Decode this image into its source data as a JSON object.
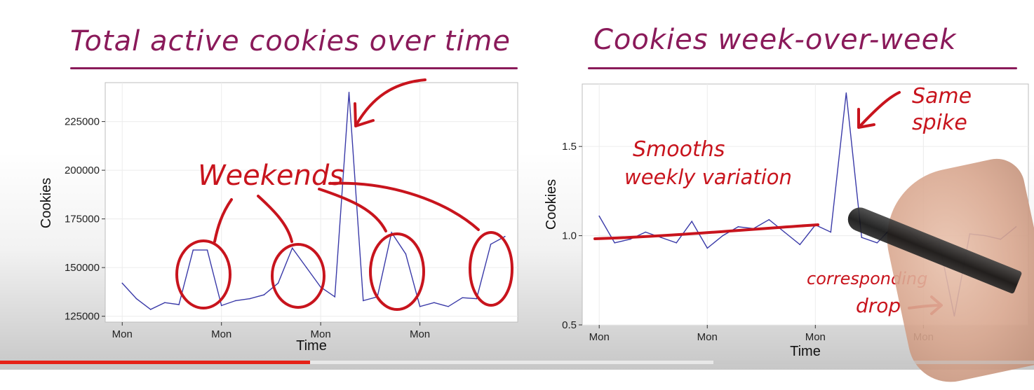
{
  "video": {
    "progress_played": 0.3,
    "progress_buffered": 0.69,
    "progress_color": "#e62117"
  },
  "colors": {
    "title_ink": "#8a1a5a",
    "annotation_ink": "#c8141d",
    "series_line": "#3a3aa8"
  },
  "chart_data": [
    {
      "type": "line",
      "title": "Total active cookies over time",
      "xlabel": "Time",
      "ylabel": "Cookies",
      "ylim": [
        122000,
        245000
      ],
      "yticks": [
        125000,
        150000,
        175000,
        200000,
        225000
      ],
      "ytick_labels": [
        "125000",
        "150000",
        "175000",
        "200000",
        "225000"
      ],
      "xticks": [
        0,
        7,
        14,
        21
      ],
      "xtick_labels": [
        "Mon",
        "Mon",
        "Mon",
        "Mon"
      ],
      "xlim": [
        -1.2,
        27.9
      ],
      "x": [
        0,
        1,
        2,
        3,
        4,
        5,
        6,
        7,
        8,
        9,
        10,
        11,
        12,
        13,
        14,
        15,
        16,
        17,
        18,
        19,
        20,
        21,
        22,
        23,
        24,
        25,
        26,
        27
      ],
      "series": [
        {
          "values": [
            142000,
            134000,
            128500,
            132000,
            131000,
            159000,
            159000,
            130500,
            133000,
            134000,
            136000,
            142000,
            160000,
            150000,
            140000,
            135000,
            240000,
            133000,
            135000,
            168000,
            157000,
            130000,
            132000,
            130000,
            134500,
            134000,
            162000,
            166000
          ]
        }
      ],
      "grid": true,
      "annotations": [
        {
          "text": "Weekends"
        }
      ]
    },
    {
      "type": "line",
      "title": "Cookies week-over-week",
      "xlabel": "Time",
      "ylabel": "Cookies",
      "ylim": [
        0.5,
        1.85
      ],
      "yticks": [
        0.5,
        1.0,
        1.5
      ],
      "ytick_labels": [
        "0.5",
        "1.0",
        "1.5"
      ],
      "xticks": [
        0,
        7,
        14,
        21
      ],
      "xtick_labels": [
        "Mon",
        "Mon",
        "Mon",
        "Mon"
      ],
      "xlim": [
        -1.1,
        27.8
      ],
      "x": [
        0,
        1,
        2,
        3,
        4,
        5,
        6,
        7,
        8,
        9,
        10,
        11,
        12,
        13,
        14,
        15,
        16,
        17,
        18,
        19,
        20,
        21,
        22,
        23,
        24,
        25,
        26,
        27
      ],
      "series": [
        {
          "values": [
            1.11,
            0.96,
            0.98,
            1.02,
            0.99,
            0.96,
            1.08,
            0.93,
            1.0,
            1.05,
            1.04,
            1.09,
            1.02,
            0.95,
            1.06,
            1.02,
            1.8,
            0.99,
            0.96,
            1.05,
            1.03,
            0.95,
            0.97,
            0.55,
            1.01,
            1.0,
            0.98,
            1.05
          ]
        }
      ],
      "grid": true,
      "annotations": [
        {
          "text": "Smooths"
        },
        {
          "text": "weekly variation"
        },
        {
          "text": "Same"
        },
        {
          "text": "spike"
        },
        {
          "text": "corresponding"
        },
        {
          "text": "drop"
        }
      ]
    }
  ]
}
